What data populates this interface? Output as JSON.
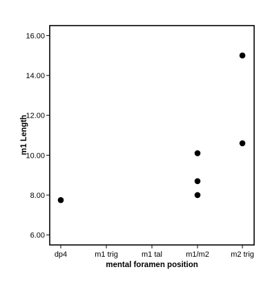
{
  "chart_data": {
    "type": "scatter",
    "title": "",
    "xlabel": "mental foramen position",
    "ylabel": "m1 Length",
    "categories": [
      "dp4",
      "m1 trig",
      "m1 tal",
      "m1/m2",
      "m2 trig"
    ],
    "ylim": [
      5.5,
      16.5
    ],
    "yticks": [
      6.0,
      8.0,
      10.0,
      12.0,
      14.0,
      16.0
    ],
    "ytick_labels": [
      "6.00",
      "8.00",
      "10.00",
      "12.00",
      "14.00",
      "16.00"
    ],
    "grid": false,
    "legend": "none",
    "marker_color": "#000000",
    "points": [
      {
        "x": "dp4",
        "y": 7.75
      },
      {
        "x": "m1/m2",
        "y": 10.1
      },
      {
        "x": "m1/m2",
        "y": 8.7
      },
      {
        "x": "m1/m2",
        "y": 8.0
      },
      {
        "x": "m2 trig",
        "y": 15.0
      },
      {
        "x": "m2 trig",
        "y": 10.6
      }
    ]
  }
}
